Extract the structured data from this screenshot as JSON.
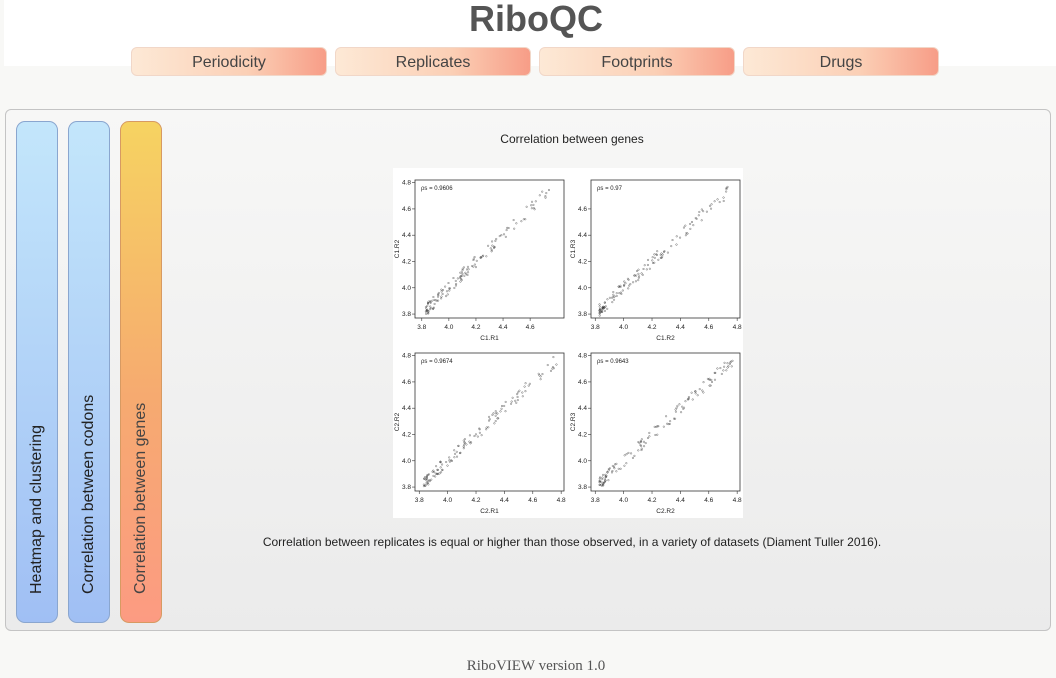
{
  "app": {
    "title": "RiboQC",
    "footer": "RiboVIEW version 1.0"
  },
  "nav": {
    "tabs": [
      {
        "label": "Periodicity"
      },
      {
        "label": "Replicates"
      },
      {
        "label": "Footprints"
      },
      {
        "label": "Drugs"
      }
    ]
  },
  "sidebar": {
    "tabs": [
      {
        "label": "Heatmap and clustering",
        "active": false
      },
      {
        "label": "Correlation between codons",
        "active": false
      },
      {
        "label": "Correlation between genes",
        "active": true
      }
    ]
  },
  "main": {
    "title": "Correlation between genes",
    "caption": "Correlation between replicates is equal or higher than those observed, in a variety of datasets (Diament Tuller 2016)."
  },
  "colors": {
    "accent_active": "#f6aa70",
    "tab_inactive": "#a0bff4",
    "nav_tab": "#f79d87"
  },
  "chart_data": [
    {
      "type": "scatter",
      "xlabel": "C1.R1",
      "ylabel": "C1.R2",
      "annotation": "ρs = 0.9606",
      "xlim": [
        3.75,
        4.85
      ],
      "ylim": [
        3.77,
        4.82
      ],
      "x_ticks": [
        3.8,
        4.0,
        4.2,
        4.4,
        4.6
      ],
      "y_ticks": [
        3.8,
        4.0,
        4.2,
        4.4,
        4.6,
        4.8
      ]
    },
    {
      "type": "scatter",
      "xlabel": "C1.R2",
      "ylabel": "C1.R3",
      "annotation": "ρs = 0.97",
      "xlim": [
        3.77,
        4.82
      ],
      "ylim": [
        3.77,
        4.82
      ],
      "x_ticks": [
        3.8,
        4.0,
        4.2,
        4.4,
        4.6,
        4.8
      ],
      "y_ticks": [
        3.8,
        4.0,
        4.2,
        4.4,
        4.6
      ]
    },
    {
      "type": "scatter",
      "xlabel": "C2.R1",
      "ylabel": "C2.R2",
      "annotation": "ρs = 0.9674",
      "xlim": [
        3.77,
        4.82
      ],
      "ylim": [
        3.77,
        4.82
      ],
      "x_ticks": [
        3.8,
        4.0,
        4.2,
        4.4,
        4.6,
        4.8
      ],
      "y_ticks": [
        3.8,
        4.0,
        4.2,
        4.4,
        4.6,
        4.8
      ]
    },
    {
      "type": "scatter",
      "xlabel": "C2.R2",
      "ylabel": "C2.R3",
      "annotation": "ρs = 0.9643",
      "xlim": [
        3.77,
        4.82
      ],
      "ylim": [
        3.77,
        4.82
      ],
      "x_ticks": [
        3.8,
        4.0,
        4.2,
        4.4,
        4.6,
        4.8
      ],
      "y_ticks": [
        3.8,
        4.0,
        4.2,
        4.4,
        4.6,
        4.8
      ]
    }
  ]
}
